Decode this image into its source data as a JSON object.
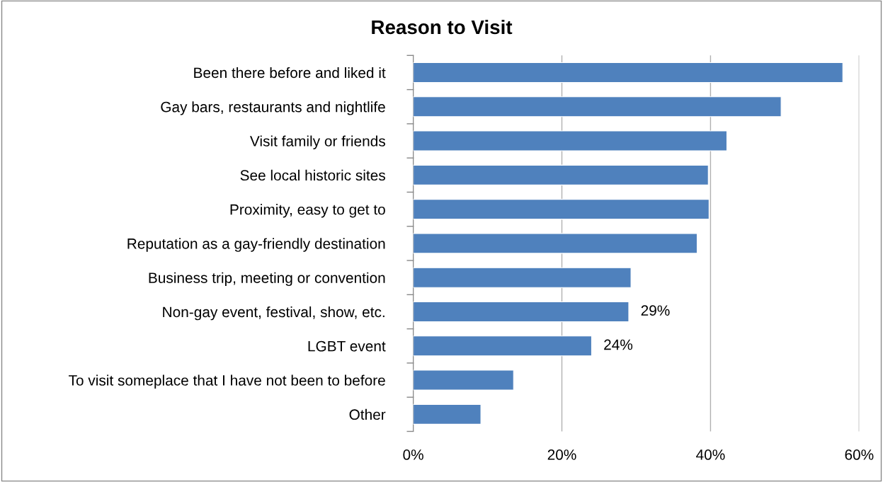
{
  "chart_data": {
    "type": "bar",
    "title": "Reason to Visit",
    "orientation": "horizontal",
    "categories": [
      "Been there before and liked it",
      "Gay bars, restaurants and nightlife",
      "Visit family or friends",
      "See local historic sites",
      "Proximity, easy to get to",
      "Reputation as a gay-friendly destination",
      "Business trip, meeting or convention",
      "Non-gay event, festival, show, etc.",
      "LGBT event",
      "To visit someplace that I have not been to before",
      "Other"
    ],
    "values": [
      57.8,
      49.5,
      42.2,
      39.7,
      39.8,
      38.2,
      29.3,
      29,
      24,
      13.5,
      9.1
    ],
    "value_labels": [
      null,
      null,
      null,
      null,
      null,
      null,
      null,
      "29%",
      "24%",
      null,
      null
    ],
    "color": "#4f81bd",
    "xlim": [
      0,
      60
    ],
    "xticks": [
      {
        "value": 0,
        "label": "0%"
      },
      {
        "value": 20,
        "label": "20%"
      },
      {
        "value": 40,
        "label": "40%"
      },
      {
        "value": 60,
        "label": "60%"
      }
    ],
    "grid": "x"
  }
}
